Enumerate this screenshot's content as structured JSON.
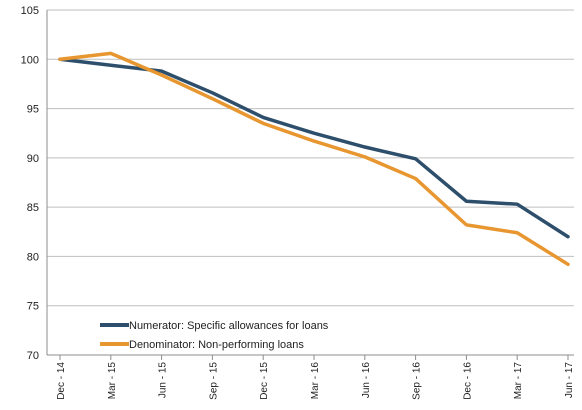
{
  "chart_data": {
    "type": "line",
    "title": "",
    "xlabel": "",
    "ylabel": "",
    "categories": [
      "Dec - 14",
      "Mar - 15",
      "Jun - 15",
      "Sep - 15",
      "Dec - 15",
      "Mar - 16",
      "Jun - 16",
      "Sep - 16",
      "Dec - 16",
      "Mar - 17",
      "Jun - 17"
    ],
    "ylim": [
      70,
      105
    ],
    "yticks": [
      70,
      75,
      80,
      85,
      90,
      95,
      100,
      105
    ],
    "grid": "horizontal",
    "legend_position": "bottom-left",
    "series": [
      {
        "name": "Numerator: Specific allowances for loans",
        "color": "#2e4f6b",
        "values": [
          100.0,
          99.4,
          98.8,
          96.6,
          94.1,
          92.5,
          91.1,
          89.9,
          85.6,
          85.3,
          82.0
        ]
      },
      {
        "name": "Denominator: Non-performing loans",
        "color": "#e8962f",
        "values": [
          100.0,
          100.6,
          98.4,
          96.0,
          93.5,
          91.7,
          90.1,
          87.9,
          83.2,
          82.4,
          79.2
        ]
      }
    ]
  }
}
